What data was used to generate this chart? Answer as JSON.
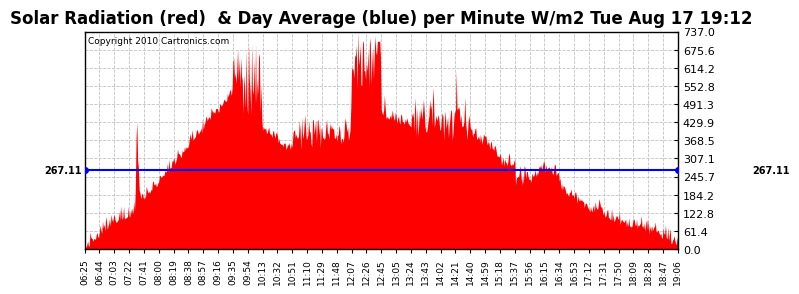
{
  "title": "Solar Radiation (red)  & Day Average (blue) per Minute W/m2 Tue Aug 17 19:12",
  "copyright_text": "Copyright 2010 Cartronics.com",
  "average_value": 267.11,
  "ymin": 0.0,
  "ymax": 737.0,
  "yticks": [
    0.0,
    61.4,
    122.8,
    184.2,
    245.7,
    307.1,
    368.5,
    429.9,
    491.3,
    552.8,
    614.2,
    675.6,
    737.0
  ],
  "fill_color": "#FF0000",
  "line_color": "#0000FF",
  "background_color": "#FFFFFF",
  "grid_color": "#BBBBBB",
  "title_fontsize": 13,
  "copyright_fontsize": 7,
  "avg_label_fontsize": 7,
  "xtick_labels": [
    "06:25",
    "06:44",
    "07:03",
    "07:22",
    "07:41",
    "08:00",
    "08:19",
    "08:38",
    "08:57",
    "09:16",
    "09:35",
    "09:54",
    "10:13",
    "10:32",
    "10:51",
    "11:10",
    "11:29",
    "11:48",
    "12:07",
    "12:26",
    "12:45",
    "13:05",
    "13:24",
    "13:43",
    "14:02",
    "14:21",
    "14:40",
    "14:59",
    "15:18",
    "15:37",
    "15:56",
    "16:15",
    "16:34",
    "16:53",
    "17:12",
    "17:31",
    "17:50",
    "18:09",
    "18:28",
    "18:47",
    "19:06"
  ],
  "n_points": 761
}
